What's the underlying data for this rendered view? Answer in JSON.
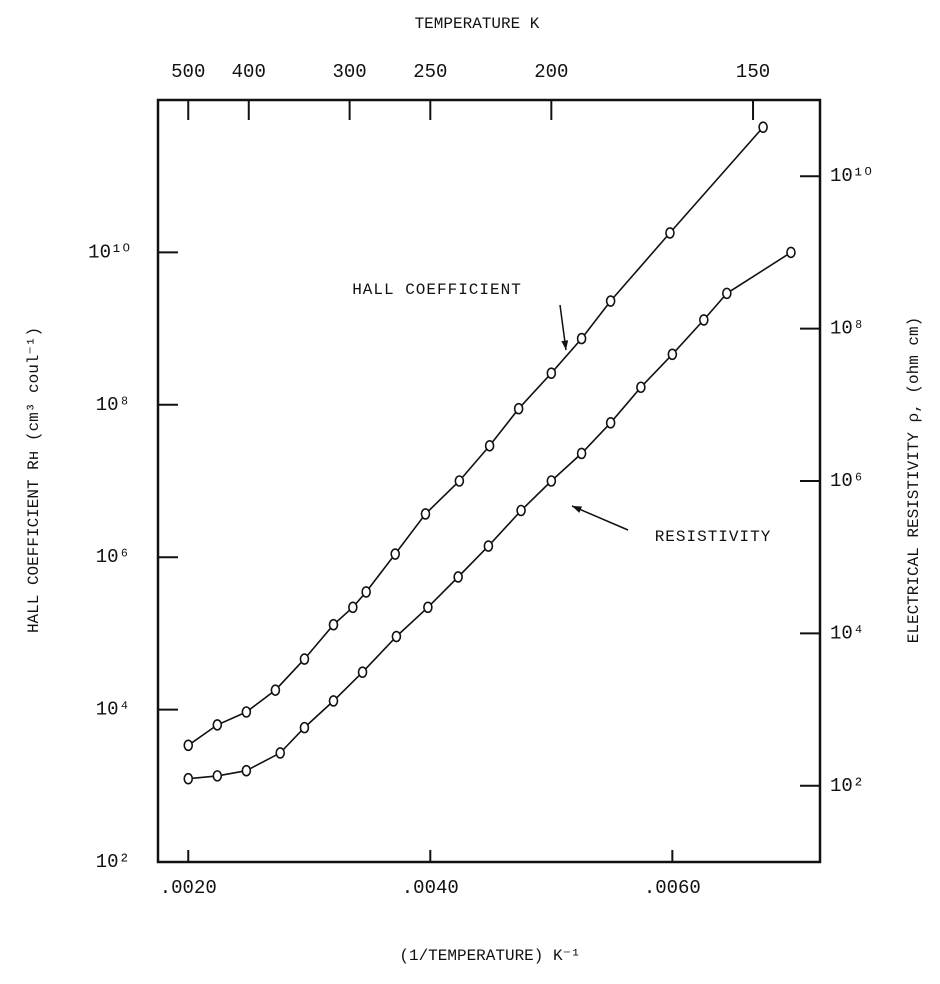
{
  "chart_data": {
    "type": "line",
    "markers": true,
    "x_label": "(1/TEMPERATURE)  K⁻¹",
    "x2_label": "TEMPERATURE  K",
    "y_label": "HALL COEFFICIENT Rʜ  (cm³ coul⁻¹)",
    "y2_label": "ELECTRICAL RESISTIVITY ρ, (ohm cm)",
    "xlim": [
      0.00175,
      0.00722
    ],
    "xticks": [
      {
        "value": 0.002,
        "label": ".0020"
      },
      {
        "value": 0.004,
        "label": ".0040"
      },
      {
        "value": 0.006,
        "label": ".0060"
      }
    ],
    "x2scale": "reciprocal",
    "x2ticks": [
      500,
      400,
      300,
      250,
      200,
      150
    ],
    "ylim": [
      100,
      1000000000000
    ],
    "yscale": "log",
    "yticks": [
      {
        "value": 100,
        "label": "10²"
      },
      {
        "value": 10000,
        "label": "10⁴"
      },
      {
        "value": 1000000,
        "label": "10⁶"
      },
      {
        "value": 100000000,
        "label": "10⁸"
      },
      {
        "value": 10000000000,
        "label": "10¹⁰"
      }
    ],
    "y2lim": [
      10,
      100000000000
    ],
    "y2scale": "log",
    "y2ticks": [
      {
        "value": 100,
        "label": "10²"
      },
      {
        "value": 10000,
        "label": "10⁴"
      },
      {
        "value": 1000000,
        "label": "10⁶"
      },
      {
        "value": 100000000,
        "label": "10⁸"
      },
      {
        "value": 10000000000,
        "label": "10¹⁰"
      }
    ],
    "series": [
      {
        "name": "HALL COEFFICIENT",
        "color": "#111111",
        "x": [
          0.002,
          0.00224,
          0.00248,
          0.00272,
          0.00296,
          0.0032,
          0.00336,
          0.00347,
          0.00371,
          0.00396,
          0.00424,
          0.00449,
          0.00473,
          0.005,
          0.00525,
          0.00549,
          0.00598,
          0.00675
        ],
        "values": [
          3400,
          6300,
          9300,
          18000,
          46000,
          130000,
          220000,
          350000,
          1100000,
          3700000,
          10000000,
          29000000,
          89000000,
          260000000,
          740000000,
          2300000000,
          18000000000,
          440000000000
        ]
      },
      {
        "name": "RESISTIVITY",
        "color": "#111111",
        "axis": "y2",
        "x": [
          0.002,
          0.00224,
          0.00248,
          0.00276,
          0.00296,
          0.0032,
          0.00344,
          0.00372,
          0.00398,
          0.00423,
          0.00448,
          0.00475,
          0.005,
          0.00525,
          0.00549,
          0.00574,
          0.006,
          0.00626,
          0.00645,
          0.00698
        ],
        "values": [
          124,
          135,
          158,
          270,
          580,
          1300,
          3100,
          9100,
          22000,
          55000,
          140000,
          410000,
          1000000,
          2300000,
          5800000,
          17000000,
          46000000,
          130000000,
          290000000,
          1000000000
        ]
      }
    ]
  }
}
